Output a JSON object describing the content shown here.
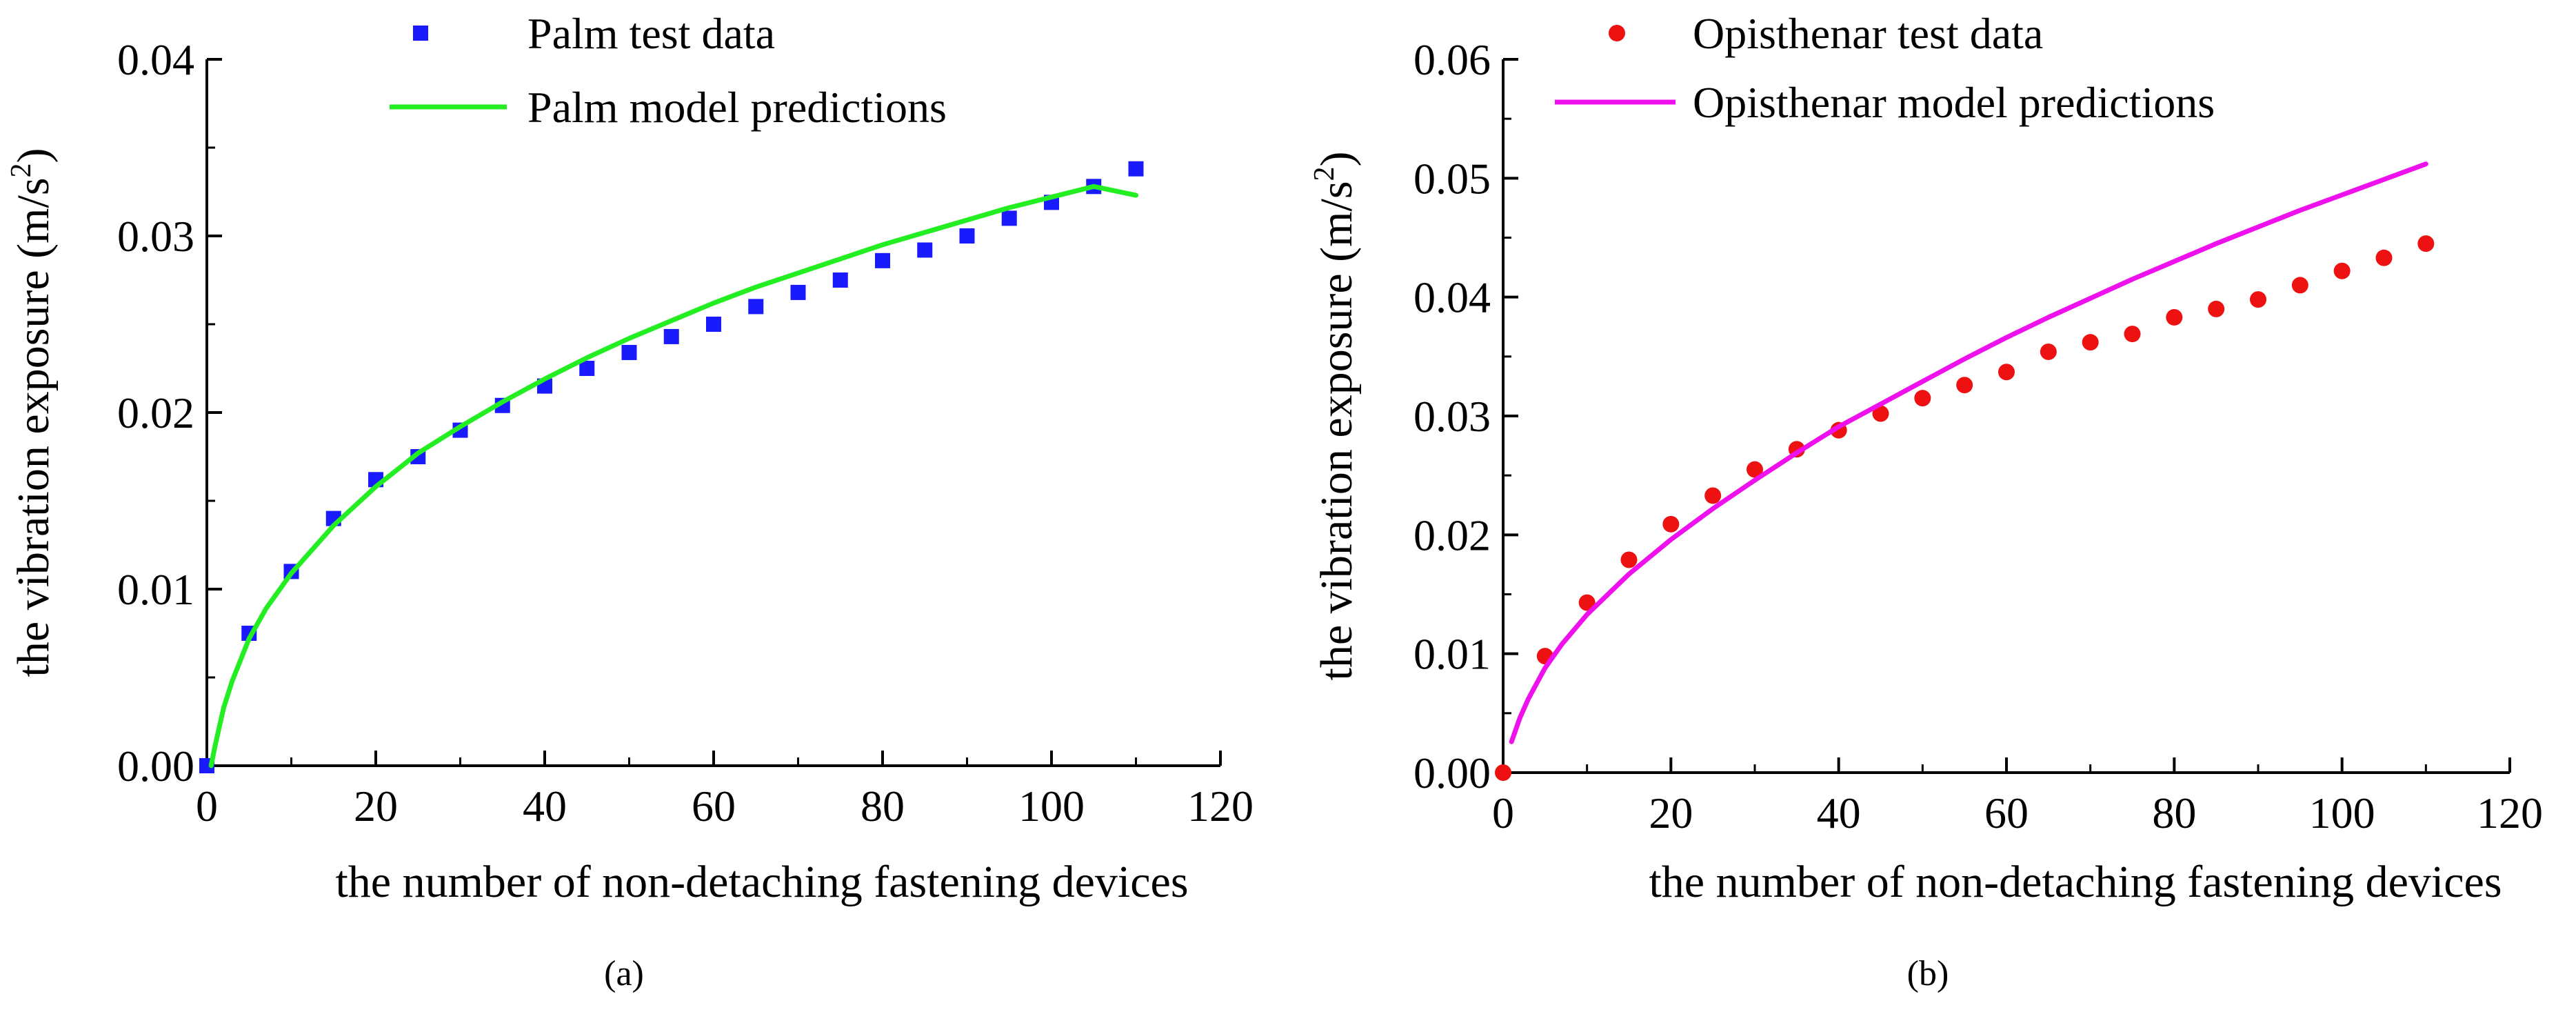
{
  "chart_data": [
    {
      "type": "scatter+line",
      "panel_label": "(a)",
      "title": "",
      "xlabel": "the number of non-detaching fastening devices",
      "ylabel": "the vibration exposure (m/s",
      "ylabel_sup": "2",
      "ylabel_end": ")",
      "xlim": [
        0,
        120
      ],
      "ylim": [
        0,
        0.04
      ],
      "x_ticks": [
        0,
        20,
        40,
        60,
        80,
        100,
        120
      ],
      "x_tick_labels": [
        "0",
        "20",
        "40",
        "60",
        "80",
        "100",
        "120"
      ],
      "y_ticks": [
        0,
        0.01,
        0.02,
        0.03,
        0.04
      ],
      "y_tick_labels": [
        "0.00",
        "0.01",
        "0.02",
        "0.03",
        "0.04"
      ],
      "grid": false,
      "legend_position": "top-right",
      "series": [
        {
          "name": "Palm test data",
          "kind": "scatter",
          "marker": "square",
          "color": "#1a1aff",
          "x": [
            0,
            5,
            10,
            15,
            20,
            25,
            30,
            35,
            40,
            45,
            50,
            55,
            60,
            65,
            70,
            75,
            80,
            85,
            90,
            95,
            100,
            105,
            110
          ],
          "y": [
            0.0,
            0.0075,
            0.011,
            0.014,
            0.0162,
            0.0175,
            0.019,
            0.0204,
            0.0215,
            0.0225,
            0.0234,
            0.0243,
            0.025,
            0.026,
            0.0268,
            0.0275,
            0.0286,
            0.0292,
            0.03,
            0.031,
            0.0319,
            0.0328,
            0.0338
          ]
        },
        {
          "name": "Palm model predictions",
          "kind": "line",
          "color": "#22ee22",
          "x": [
            0.5,
            1,
            2,
            3,
            5,
            7,
            10,
            15,
            20,
            25,
            30,
            35,
            40,
            45,
            50,
            55,
            60,
            65,
            70,
            75,
            80,
            85,
            90,
            95,
            100,
            105,
            110
          ],
          "y": [
            0.0,
            0.0012,
            0.0033,
            0.0048,
            0.0072,
            0.0089,
            0.0109,
            0.0136,
            0.0158,
            0.0177,
            0.0192,
            0.0206,
            0.0219,
            0.0231,
            0.0242,
            0.0252,
            0.0262,
            0.0271,
            0.0279,
            0.0287,
            0.0295,
            0.0302,
            0.0309,
            0.0316,
            0.0322,
            0.0328,
            0.0323
          ]
        }
      ]
    },
    {
      "type": "scatter+line",
      "panel_label": "(b)",
      "title": "",
      "xlabel": "the number of non-detaching fastening devices",
      "ylabel": "the vibration exposure (m/s",
      "ylabel_sup": "2",
      "ylabel_end": ")",
      "xlim": [
        0,
        120
      ],
      "ylim": [
        0,
        0.06
      ],
      "x_ticks": [
        0,
        20,
        40,
        60,
        80,
        100,
        120
      ],
      "x_tick_labels": [
        "0",
        "20",
        "40",
        "60",
        "80",
        "100",
        "120"
      ],
      "y_ticks": [
        0,
        0.01,
        0.02,
        0.03,
        0.04,
        0.05,
        0.06
      ],
      "y_tick_labels": [
        "0.00",
        "0.01",
        "0.02",
        "0.03",
        "0.04",
        "0.05",
        "0.06"
      ],
      "grid": false,
      "legend_position": "top-right",
      "series": [
        {
          "name": "Opisthenar test data",
          "kind": "scatter",
          "marker": "circle",
          "color": "#ee1111",
          "x": [
            0,
            5,
            10,
            15,
            20,
            25,
            30,
            35,
            40,
            45,
            50,
            55,
            60,
            65,
            70,
            75,
            80,
            85,
            90,
            95,
            100,
            105,
            110
          ],
          "y": [
            0.0,
            0.0098,
            0.0143,
            0.0179,
            0.0209,
            0.0233,
            0.0255,
            0.0272,
            0.0288,
            0.0302,
            0.0315,
            0.0326,
            0.0337,
            0.0354,
            0.0362,
            0.0369,
            0.0383,
            0.039,
            0.0398,
            0.041,
            0.0422,
            0.0433,
            0.0445
          ]
        },
        {
          "name": "Opisthenar model predictions",
          "kind": "line",
          "color": "#ee11ee",
          "x": [
            1,
            2,
            3,
            5,
            7,
            10,
            15,
            20,
            25,
            30,
            35,
            40,
            45,
            50,
            55,
            60,
            65,
            70,
            75,
            80,
            85,
            90,
            95,
            100,
            105,
            110
          ],
          "y": [
            0.0026,
            0.0046,
            0.0062,
            0.0088,
            0.0108,
            0.0133,
            0.0167,
            0.0196,
            0.0222,
            0.0246,
            0.0269,
            0.0291,
            0.031,
            0.0329,
            0.0348,
            0.0366,
            0.0383,
            0.0399,
            0.0415,
            0.043,
            0.0445,
            0.0459,
            0.0473,
            0.0486,
            0.0499,
            0.0512
          ]
        }
      ]
    }
  ]
}
